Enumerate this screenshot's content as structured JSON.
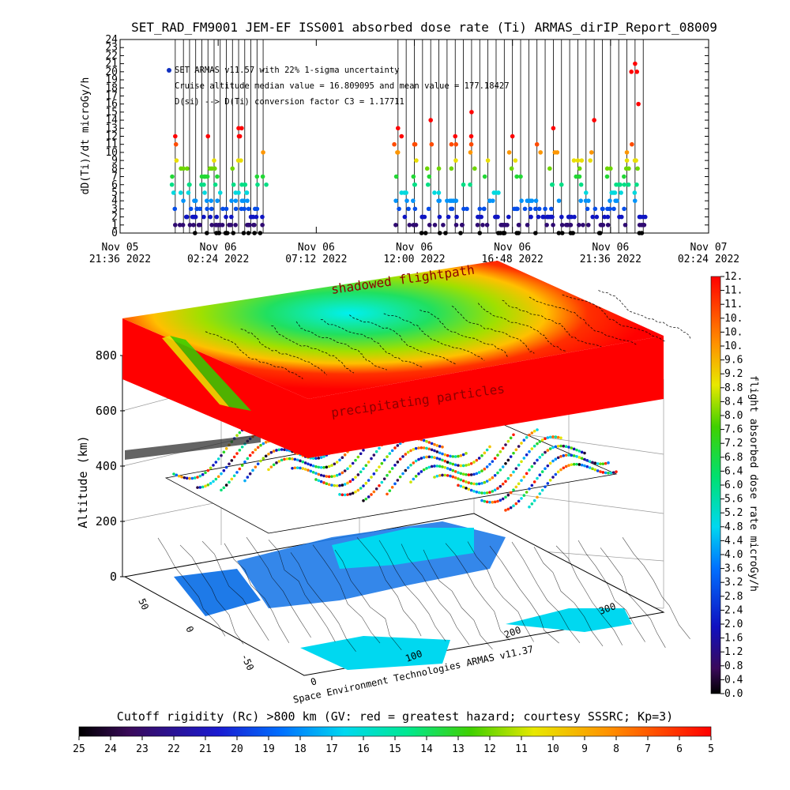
{
  "title": "SET_RAD_FM9001  JEM-EF ISS001 absorbed dose rate (Ti) ARMAS_dirIP_Report_08009",
  "chart_data": [
    {
      "type": "scatter",
      "ylabel": "dD(Ti)/dt microGy/h",
      "ylim": [
        0,
        24
      ],
      "y_ticks": [
        "0",
        "1",
        "2",
        "3",
        "4",
        "5",
        "6",
        "7",
        "8",
        "9",
        "10",
        "11",
        "12",
        "13",
        "14",
        "15",
        "16",
        "17",
        "18",
        "19",
        "20",
        "21",
        "22",
        "23",
        "24"
      ],
      "x_ticks": [
        {
          "top": "Nov 05",
          "bottom": "21:36 2022"
        },
        {
          "top": "Nov 06",
          "bottom": "02:24 2022"
        },
        {
          "top": "Nov 06",
          "bottom": "07:12 2022"
        },
        {
          "top": "Nov 06",
          "bottom": "12:00 2022"
        },
        {
          "top": "Nov 06",
          "bottom": "16:48 2022"
        },
        {
          "top": "Nov 06",
          "bottom": "21:36 2022"
        },
        {
          "top": "Nov 07",
          "bottom": "02:24 2022"
        }
      ],
      "xlim_hours": [
        0,
        28.8
      ],
      "legend": {
        "series_name": "SET ARMAS v11.57 with 22% 1-sigma uncertainty",
        "line2": "Cruise altitude median value = 16.809095 and mean value = 177.18427",
        "line3": "D(si) --> D(Ti) conversion factor C3 = 1.17711"
      },
      "series": [
        {
          "hours": [
            2.7,
            3.1,
            3.4,
            3.7,
            4.0,
            4.3,
            4.6,
            4.9,
            5.2,
            5.5,
            5.8,
            6.1,
            6.4,
            6.7,
            7.0
          ],
          "values": [
            12,
            8,
            6,
            4,
            7,
            12,
            9,
            5,
            3,
            8,
            13,
            6,
            2,
            7,
            10
          ]
        },
        {
          "hours": [
            13.6,
            14.0,
            14.4,
            14.8,
            15.2,
            15.6,
            16.0,
            16.4,
            16.8,
            17.2,
            17.6,
            18.0,
            18.4,
            18.8,
            19.2,
            19.6,
            20.0,
            20.4,
            20.8,
            21.2,
            21.6,
            22.0,
            22.4,
            22.8,
            23.2,
            23.6,
            24.0,
            24.4,
            24.8,
            25.2,
            25.6
          ],
          "values": [
            13,
            5,
            11,
            2,
            14,
            8,
            4,
            12,
            6,
            15,
            3,
            9,
            5,
            1,
            12,
            7,
            4,
            11,
            3,
            13,
            6,
            2,
            9,
            5,
            14,
            3,
            8,
            6,
            10,
            21,
            2
          ]
        }
      ]
    },
    {
      "type": "3d-surface",
      "zlabel": "Altitude (km)",
      "z_ticks": [
        "0",
        "200",
        "400",
        "600",
        "800"
      ],
      "lat_ticks": [
        "-50",
        "0",
        "50"
      ],
      "lon_ticks": [
        "0",
        "100",
        "200",
        "300"
      ],
      "annotation_top": "shadowed flightpath",
      "annotation_bottom": "precipitating particles",
      "credit": "Space Environment Technologies ARMAS v11.37"
    }
  ],
  "colorbar_right": {
    "label": "flight absorbed dose rate microGy/h",
    "ticks": [
      "0.0",
      "0.4",
      "0.8",
      "1.2",
      "1.6",
      "2.0",
      "2.4",
      "2.8",
      "3.2",
      "3.6",
      "4.0",
      "4.4",
      "4.8",
      "5.2",
      "5.6",
      "6.0",
      "6.4",
      "6.8",
      "7.2",
      "7.6",
      "8.0",
      "8.4",
      "8.8",
      "9.2",
      "9.6",
      "10.",
      "10.",
      "10.",
      "11.",
      "11.",
      "12."
    ]
  },
  "colorbar_bottom": {
    "title": "Cutoff rigidity (Rc) >800 km (GV: red = greatest hazard; courtesy SSSRC; Kp=3)",
    "ticks": [
      "25",
      "24",
      "23",
      "22",
      "21",
      "20",
      "19",
      "18",
      "17",
      "16",
      "15",
      "14",
      "13",
      "12",
      "11",
      "10",
      "9",
      "8",
      "7",
      "6",
      "5"
    ]
  }
}
